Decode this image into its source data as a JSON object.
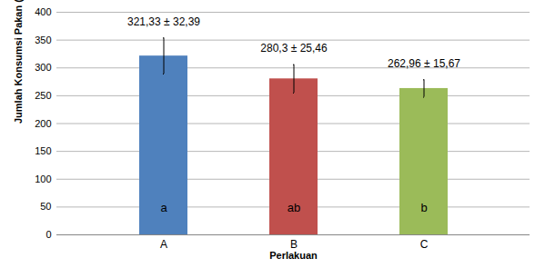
{
  "chart_data": {
    "type": "bar",
    "x_label": "Perlakuan",
    "y_label": "Jumlah Konsumsi Pakan (g)",
    "categories": [
      "A",
      "B",
      "C"
    ],
    "values": [
      321.33,
      280.3,
      262.96
    ],
    "errors": [
      32.39,
      25.46,
      15.67
    ],
    "value_labels": [
      "321,33 ± 32,39",
      "280,3 ± 25,46",
      "262,96 ± 15,67"
    ],
    "letters": [
      "a",
      "ab",
      "b"
    ],
    "colors": [
      "#4f81bd",
      "#c0504d",
      "#9bbb59"
    ],
    "ylim": [
      0,
      400
    ],
    "yticks": [
      0,
      50,
      100,
      150,
      200,
      250,
      300,
      350,
      400
    ],
    "grid": true,
    "data_labels": true
  }
}
